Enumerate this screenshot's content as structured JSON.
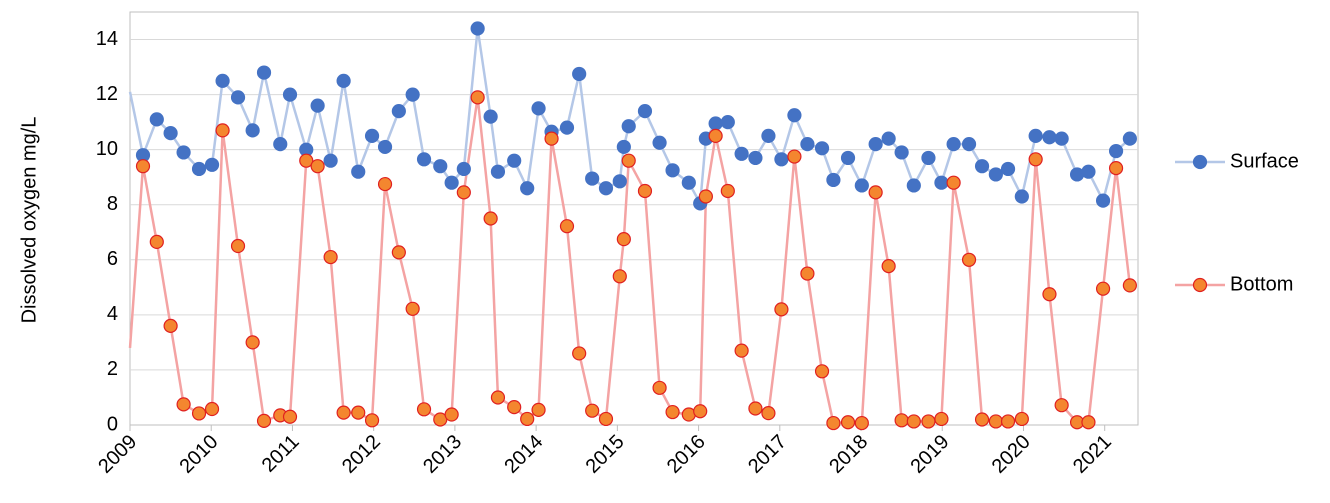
{
  "chart_data": {
    "type": "line",
    "y_label": "Dissolved oxygen mg/L",
    "x": [
      2009.0,
      2009.16,
      2009.33,
      2009.5,
      2009.66,
      2009.85,
      2010.01,
      2010.14,
      2010.33,
      2010.51,
      2010.65,
      2010.85,
      2010.97,
      2011.17,
      2011.31,
      2011.47,
      2011.63,
      2011.81,
      2011.98,
      2012.14,
      2012.31,
      2012.48,
      2012.62,
      2012.82,
      2012.96,
      2013.11,
      2013.28,
      2013.44,
      2013.53,
      2013.73,
      2013.89,
      2014.03,
      2014.19,
      2014.38,
      2014.53,
      2014.69,
      2014.86,
      2015.03,
      2015.08,
      2015.14,
      2015.34,
      2015.52,
      2015.68,
      2015.88,
      2016.02,
      2016.09,
      2016.21,
      2016.36,
      2016.53,
      2016.7,
      2016.86,
      2017.02,
      2017.18,
      2017.34,
      2017.52,
      2017.66,
      2017.84,
      2018.01,
      2018.18,
      2018.34,
      2018.5,
      2018.65,
      2018.83,
      2018.99,
      2019.14,
      2019.33,
      2019.49,
      2019.66,
      2019.81,
      2019.98,
      2020.15,
      2020.32,
      2020.47,
      2020.66,
      2020.8,
      2020.98,
      2021.14,
      2021.31
    ],
    "series": [
      {
        "name": "Surface",
        "color": "#4472c4",
        "line_color": "#b4c7e7",
        "marker_edge": "#4472c4",
        "values": [
          12.1,
          9.8,
          11.1,
          10.6,
          9.9,
          9.3,
          9.45,
          12.5,
          11.9,
          10.7,
          12.8,
          10.2,
          12.0,
          10.0,
          11.6,
          9.6,
          12.5,
          9.2,
          10.5,
          10.1,
          11.4,
          12.0,
          9.65,
          9.4,
          8.8,
          9.3,
          14.4,
          11.2,
          9.2,
          9.6,
          8.6,
          11.5,
          10.65,
          10.8,
          12.75,
          8.95,
          8.6,
          8.85,
          10.1,
          10.85,
          11.4,
          10.25,
          9.25,
          8.8,
          8.05,
          10.4,
          10.95,
          11.0,
          9.85,
          9.7,
          10.5,
          9.65,
          11.25,
          10.2,
          10.05,
          8.9,
          9.7,
          8.7,
          10.2,
          10.4,
          9.9,
          8.7,
          9.7,
          8.8,
          10.2,
          10.2,
          9.4,
          9.1,
          9.3,
          8.3,
          10.5,
          10.45,
          10.4,
          9.1,
          9.2,
          8.15,
          9.95,
          10.4
        ]
      },
      {
        "name": "Bottom",
        "color": "#f4862f",
        "line_color": "#f4a3a3",
        "marker_edge": "#e02020",
        "values": [
          2.8,
          9.4,
          6.65,
          3.6,
          0.75,
          0.42,
          0.58,
          10.7,
          6.5,
          3.0,
          0.15,
          0.35,
          0.3,
          9.6,
          9.4,
          6.1,
          0.45,
          0.45,
          0.17,
          8.75,
          6.27,
          4.22,
          0.57,
          0.2,
          0.38,
          8.45,
          11.9,
          7.5,
          1.0,
          0.65,
          0.22,
          0.55,
          10.4,
          7.22,
          2.6,
          0.52,
          0.22,
          5.4,
          6.75,
          9.6,
          8.5,
          1.35,
          0.47,
          0.38,
          0.5,
          8.3,
          10.5,
          8.5,
          2.7,
          0.6,
          0.43,
          4.2,
          9.75,
          5.5,
          1.95,
          0.07,
          0.1,
          0.07,
          8.45,
          5.77,
          0.17,
          0.13,
          0.13,
          0.22,
          8.8,
          6.0,
          0.2,
          0.13,
          0.13,
          0.22,
          9.65,
          4.75,
          0.72,
          0.1,
          0.1,
          4.95,
          9.33,
          5.07
        ]
      }
    ],
    "xlim": [
      2009,
      2021.41
    ],
    "xticks": [
      2009,
      2010,
      2011,
      2012,
      2013,
      2014,
      2015,
      2016,
      2017,
      2018,
      2019,
      2020,
      2021
    ],
    "ylim": [
      0,
      15
    ],
    "yticks": [
      0,
      2,
      4,
      6,
      8,
      10,
      12,
      14
    ],
    "grid": true,
    "legend": "right"
  }
}
